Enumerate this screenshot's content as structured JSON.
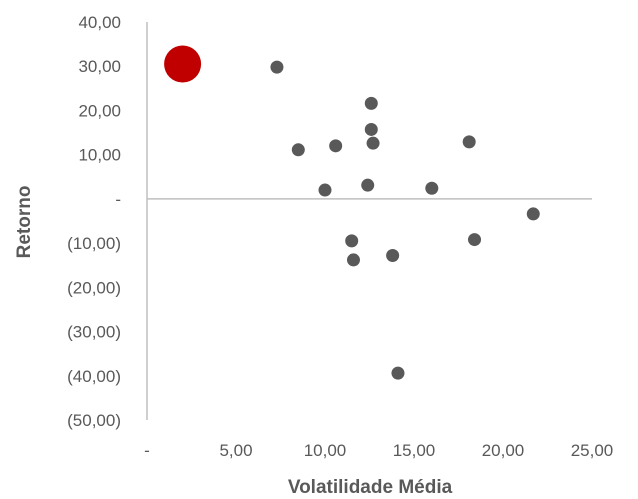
{
  "chart_data": {
    "type": "scatter",
    "title": "",
    "xlabel": "Volatilidade Média",
    "ylabel": "Retorno",
    "xlim": [
      0,
      25
    ],
    "ylim": [
      -50,
      40
    ],
    "x_ticks": [
      {
        "value": 0,
        "label": "-"
      },
      {
        "value": 5,
        "label": "5,00"
      },
      {
        "value": 10,
        "label": "10,00"
      },
      {
        "value": 15,
        "label": "15,00"
      },
      {
        "value": 20,
        "label": "20,00"
      },
      {
        "value": 25,
        "label": "25,00"
      }
    ],
    "y_ticks": [
      {
        "value": 40,
        "label": "40,00"
      },
      {
        "value": 30,
        "label": "30,00"
      },
      {
        "value": 20,
        "label": "20,00"
      },
      {
        "value": 10,
        "label": "10,00"
      },
      {
        "value": 0,
        "label": "-"
      },
      {
        "value": -10,
        "label": "(10,00)"
      },
      {
        "value": -20,
        "label": "(20,00)"
      },
      {
        "value": -30,
        "label": "(30,00)"
      },
      {
        "value": -40,
        "label": "(40,00)"
      },
      {
        "value": -50,
        "label": "(50,00)"
      }
    ],
    "grid": false,
    "legend": "none",
    "colors": {
      "point": "#595959",
      "highlight": "#c00000",
      "axis": "#bfbfbf",
      "text": "#595959"
    },
    "highlight_points": [
      {
        "x": 2.0,
        "y": 30.5
      }
    ],
    "points": [
      {
        "x": 7.3,
        "y": 29.8
      },
      {
        "x": 8.5,
        "y": 11.1
      },
      {
        "x": 10.6,
        "y": 12.0
      },
      {
        "x": 10.0,
        "y": 2.0
      },
      {
        "x": 12.6,
        "y": 21.6
      },
      {
        "x": 12.6,
        "y": 15.7
      },
      {
        "x": 12.7,
        "y": 12.6
      },
      {
        "x": 12.4,
        "y": 3.1
      },
      {
        "x": 16.0,
        "y": 2.4
      },
      {
        "x": 18.1,
        "y": 12.9
      },
      {
        "x": 21.7,
        "y": -3.4
      },
      {
        "x": 11.5,
        "y": -9.5
      },
      {
        "x": 18.4,
        "y": -9.2
      },
      {
        "x": 11.6,
        "y": -13.8
      },
      {
        "x": 13.8,
        "y": -12.8
      },
      {
        "x": 14.1,
        "y": -39.4
      }
    ]
  }
}
